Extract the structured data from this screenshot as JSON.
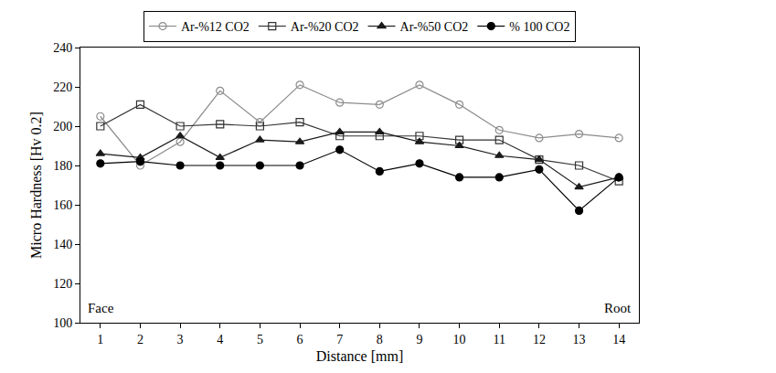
{
  "chart_data": {
    "type": "line",
    "x_label": "Distance [mm]",
    "y_label": "Micro Hardness [Hv 0.2]",
    "annotations": [
      "Face",
      "Root"
    ],
    "x": [
      1,
      2,
      3,
      4,
      5,
      6,
      7,
      8,
      9,
      10,
      11,
      12,
      13,
      14
    ],
    "series": [
      {
        "name": "Ar-%12 CO2",
        "color": "#8c8c8c",
        "marker": "circle-open",
        "values": [
          205,
          180,
          192,
          218,
          202,
          221,
          212,
          211,
          221,
          211,
          198,
          194,
          196,
          194
        ]
      },
      {
        "name": "Ar-%20 CO2",
        "color": "#333333",
        "marker": "square-open",
        "values": [
          200,
          211,
          200,
          201,
          200,
          202,
          195,
          195,
          195,
          193,
          193,
          183,
          180,
          172
        ]
      },
      {
        "name": "Ar-%50 CO2",
        "color": "#1a1a1a",
        "marker": "triangle-up",
        "values": [
          186,
          184,
          195,
          184,
          193,
          192,
          197,
          197,
          192,
          190,
          185,
          183,
          169,
          174
        ]
      },
      {
        "name": "% 100 CO2",
        "color": "#000000",
        "marker": "circle",
        "values": [
          181,
          182,
          180,
          180,
          180,
          180,
          188,
          177,
          181,
          174,
          174,
          178,
          157,
          174
        ]
      }
    ],
    "xlim": [
      0.5,
      14.5
    ],
    "xticks": [
      1,
      2,
      3,
      4,
      5,
      6,
      7,
      8,
      9,
      10,
      11,
      12,
      13,
      14
    ],
    "ylim": [
      100,
      240
    ],
    "yticks": [
      100,
      120,
      140,
      160,
      180,
      200,
      220,
      240
    ],
    "grid": false,
    "legend": "top"
  }
}
